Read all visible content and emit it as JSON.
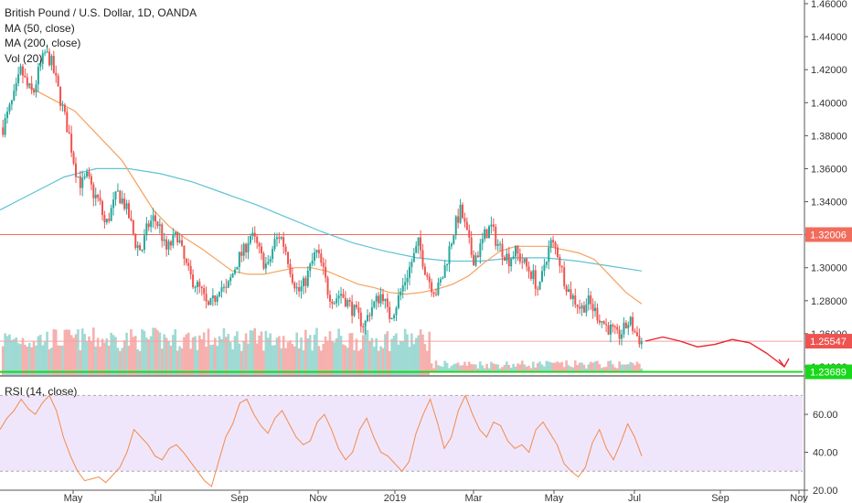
{
  "legend": {
    "title": "British Pound / U.S. Dollar, 1D, OANDA",
    "ma50": "MA (50, close)",
    "ma200": "MA (200, close)",
    "vol": "Vol (20)",
    "rsi": "RSI (14, close)"
  },
  "colors": {
    "up": "#26a69a",
    "down": "#ef5350",
    "ma50": "#f5a15e",
    "ma200": "#5fc2d6",
    "rsi_line": "#f28b4a",
    "rsi_band": "#e9dcfb",
    "resistance": "#f26c5c",
    "current": "#f4a2a2",
    "support": "#18d81a",
    "projection": "#e8242e"
  },
  "chart_data": {
    "type": "candlestick",
    "symbol": "British Pound / U.S. Dollar",
    "interval": "1D",
    "source": "OANDA",
    "x_labels": [
      "May",
      "Jul",
      "Sep",
      "Nov",
      "2019",
      "Mar",
      "May",
      "Jul",
      "Sep",
      "Nov"
    ],
    "y_ticks": [
      "1.46000",
      "1.44000",
      "1.42000",
      "1.40000",
      "1.38000",
      "1.36000",
      "1.34000",
      "1.32000",
      "1.30000",
      "1.28000",
      "1.26000",
      "1.24000"
    ],
    "ylim": [
      1.235,
      1.46
    ],
    "close_path": [
      1.385,
      1.395,
      1.405,
      1.42,
      1.41,
      1.405,
      1.42,
      1.43,
      1.425,
      1.41,
      1.395,
      1.38,
      1.36,
      1.35,
      1.355,
      1.345,
      1.34,
      1.325,
      1.335,
      1.345,
      1.34,
      1.33,
      1.315,
      1.31,
      1.325,
      1.33,
      1.325,
      1.31,
      1.315,
      1.32,
      1.305,
      1.295,
      1.29,
      1.285,
      1.275,
      1.28,
      1.29,
      1.285,
      1.295,
      1.305,
      1.31,
      1.32,
      1.315,
      1.305,
      1.3,
      1.315,
      1.32,
      1.31,
      1.295,
      1.285,
      1.29,
      1.3,
      1.31,
      1.3,
      1.285,
      1.28,
      1.285,
      1.28,
      1.275,
      1.27,
      1.265,
      1.275,
      1.28,
      1.285,
      1.27,
      1.275,
      1.285,
      1.295,
      1.305,
      1.315,
      1.3,
      1.29,
      1.285,
      1.295,
      1.31,
      1.325,
      1.335,
      1.32,
      1.305,
      1.31,
      1.32,
      1.325,
      1.315,
      1.31,
      1.305,
      1.31,
      1.305,
      1.3,
      1.295,
      1.285,
      1.305,
      1.315,
      1.31,
      1.295,
      1.285,
      1.28,
      1.275,
      1.28,
      1.275,
      1.27,
      1.265,
      1.262,
      1.258,
      1.262,
      1.268,
      1.26,
      1.255
    ],
    "ma50_path": [
      1.41,
      1.405,
      1.4,
      1.395,
      1.385,
      1.375,
      1.365,
      1.35,
      1.335,
      1.325,
      1.318,
      1.312,
      1.305,
      1.298,
      1.296,
      1.296,
      1.298,
      1.3,
      1.3,
      1.298,
      1.294,
      1.29,
      1.288,
      1.285,
      1.284,
      1.285,
      1.287,
      1.29,
      1.295,
      1.303,
      1.31,
      1.313,
      1.313,
      1.313,
      1.311,
      1.309,
      1.305,
      1.295,
      1.285,
      1.278
    ],
    "ma200_path": [
      1.335,
      1.345,
      1.355,
      1.36,
      1.36,
      1.357,
      1.352,
      1.345,
      1.338,
      1.33,
      1.322,
      1.315,
      1.31,
      1.306,
      1.304,
      1.304,
      1.306,
      1.306,
      1.304,
      1.301,
      1.298
    ],
    "rsi_ylim": [
      20,
      75
    ],
    "rsi_ticks": [
      "60.00",
      "40.00",
      "20.00"
    ],
    "rsi_band": [
      30,
      70
    ],
    "rsi_path": [
      52,
      58,
      62,
      68,
      63,
      60,
      66,
      70,
      62,
      48,
      38,
      30,
      25,
      26,
      27,
      24,
      28,
      32,
      40,
      52,
      48,
      44,
      38,
      36,
      42,
      44,
      40,
      35,
      30,
      25,
      22,
      35,
      48,
      55,
      66,
      68,
      60,
      54,
      50,
      58,
      62,
      55,
      48,
      44,
      46,
      56,
      60,
      52,
      42,
      36,
      40,
      52,
      58,
      48,
      40,
      38,
      34,
      30,
      35,
      50,
      60,
      68,
      56,
      42,
      48,
      62,
      70,
      60,
      52,
      48,
      56,
      54,
      46,
      42,
      44,
      40,
      52,
      56,
      50,
      44,
      34,
      30,
      27,
      32,
      45,
      52,
      42,
      36,
      45,
      55,
      48,
      38
    ],
    "levels": [
      {
        "price": 1.32006,
        "label": "1.32006",
        "style": "resistance"
      },
      {
        "price": 1.25547,
        "label": "1.25547",
        "style": "current"
      },
      {
        "price": 1.23689,
        "label": "1.23689",
        "style": "support"
      }
    ],
    "projection_path": [
      1.2555,
      1.258,
      1.2555,
      1.252,
      1.2535,
      1.2565,
      1.2545,
      1.248,
      1.24
    ]
  }
}
